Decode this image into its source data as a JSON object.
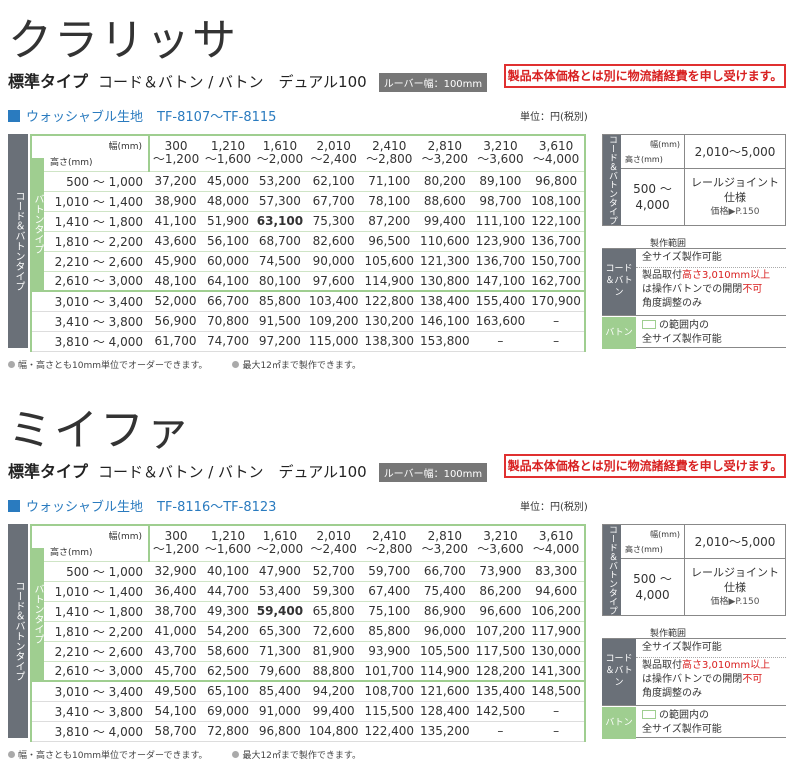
{
  "sections": [
    {
      "name": "クラリッサ",
      "type_std": "標準タイプ",
      "type_rest": "コード＆バトン / バトン　デュアル100",
      "louver": "ルーバー幅：100mm",
      "notice": "製品本体価格とは別に物流諸経費を申し受けます。",
      "fabric": "ウォッシャブル生地",
      "code": "TF-8107〜TF-8115",
      "unit": "単位：円(税別)",
      "side_label": "コード＆バトンタイプ",
      "baton_label": "バトンタイプ",
      "width_label": "幅(mm)",
      "height_label": "高さ(mm)",
      "widths": [
        [
          "300",
          "〜1,200"
        ],
        [
          "1,210",
          "〜1,600"
        ],
        [
          "1,610",
          "〜2,000"
        ],
        [
          "2,010",
          "〜2,400"
        ],
        [
          "2,410",
          "〜2,800"
        ],
        [
          "2,810",
          "〜3,200"
        ],
        [
          "3,210",
          "〜3,600"
        ],
        [
          "3,610",
          "〜4,000"
        ]
      ],
      "rows": [
        {
          "h": "500 〜 1,000",
          "v": [
            "37,200",
            "45,000",
            "53,200",
            "62,100",
            "71,100",
            "80,200",
            "89,100",
            "96,800"
          ]
        },
        {
          "h": "1,010 〜 1,400",
          "v": [
            "38,900",
            "48,000",
            "57,300",
            "67,700",
            "78,100",
            "88,600",
            "98,700",
            "108,100"
          ]
        },
        {
          "h": "1,410 〜 1,800",
          "v": [
            "41,100",
            "51,900",
            "63,100",
            "75,300",
            "87,200",
            "99,400",
            "111,100",
            "122,100"
          ]
        },
        {
          "h": "1,810 〜 2,200",
          "v": [
            "43,600",
            "56,100",
            "68,700",
            "82,600",
            "96,500",
            "110,600",
            "123,900",
            "136,700"
          ]
        },
        {
          "h": "2,210 〜 2,600",
          "v": [
            "45,900",
            "60,000",
            "74,500",
            "90,000",
            "105,600",
            "121,300",
            "136,700",
            "150,700"
          ]
        },
        {
          "h": "2,610 〜 3,000",
          "v": [
            "48,100",
            "64,100",
            "80,100",
            "97,600",
            "114,900",
            "130,800",
            "147,100",
            "162,700"
          ]
        },
        {
          "h": "3,010 〜 3,400",
          "v": [
            "52,000",
            "66,700",
            "85,800",
            "103,400",
            "122,800",
            "138,400",
            "155,400",
            "170,900"
          ]
        },
        {
          "h": "3,410 〜 3,800",
          "v": [
            "56,900",
            "70,800",
            "91,500",
            "109,200",
            "130,200",
            "146,100",
            "163,600",
            "–"
          ]
        },
        {
          "h": "3,810 〜 4,000",
          "v": [
            "61,700",
            "74,700",
            "97,200",
            "115,000",
            "138,300",
            "153,800",
            "–",
            "–"
          ]
        }
      ],
      "note1": "幅・高さとも10mm単位でオーダーできます。",
      "note2": "最大12㎡まで製作できます。",
      "rail_side": "コード＆バトンタイプ",
      "rail_width": "幅(mm)",
      "rail_height": "高さ(mm)",
      "rail_range": "2,010〜5,000",
      "rail_hrange1": "500 〜",
      "rail_hrange2": "4,000",
      "rail_joint1": "レールジョイント",
      "rail_joint2": "仕様",
      "rail_ref": "価格▶P.150",
      "prod_title": "製作範囲",
      "prod_l1": "コード＆バトン",
      "prod_l2": "バトン",
      "prod_t1": "全サイズ製作可能",
      "prod_t2a": "製品取付",
      "prod_t2b": "高さ3,010mm以上",
      "prod_t2c": "は操作バトンでの開閉",
      "prod_t2d": "不可",
      "prod_t2e": "角度調整のみ",
      "prod_t3a": "の範囲内の",
      "prod_t3b": "全サイズ製作可能"
    },
    {
      "name": "ミイファ",
      "type_std": "標準タイプ",
      "type_rest": "コード＆バトン / バトン　デュアル100",
      "louver": "ルーバー幅：100mm",
      "notice": "製品本体価格とは別に物流諸経費を申し受けます。",
      "fabric": "ウォッシャブル生地",
      "code": "TF-8116〜TF-8123",
      "unit": "単位：円(税別)",
      "side_label": "コード＆バトンタイプ",
      "baton_label": "バトンタイプ",
      "width_label": "幅(mm)",
      "height_label": "高さ(mm)",
      "widths": [
        [
          "300",
          "〜1,200"
        ],
        [
          "1,210",
          "〜1,600"
        ],
        [
          "1,610",
          "〜2,000"
        ],
        [
          "2,010",
          "〜2,400"
        ],
        [
          "2,410",
          "〜2,800"
        ],
        [
          "2,810",
          "〜3,200"
        ],
        [
          "3,210",
          "〜3,600"
        ],
        [
          "3,610",
          "〜4,000"
        ]
      ],
      "rows": [
        {
          "h": "500 〜 1,000",
          "v": [
            "32,900",
            "40,100",
            "47,900",
            "52,700",
            "59,700",
            "66,700",
            "73,900",
            "83,300"
          ]
        },
        {
          "h": "1,010 〜 1,400",
          "v": [
            "36,400",
            "44,700",
            "53,400",
            "59,300",
            "67,400",
            "75,400",
            "86,200",
            "94,600"
          ]
        },
        {
          "h": "1,410 〜 1,800",
          "v": [
            "38,700",
            "49,300",
            "59,400",
            "65,800",
            "75,100",
            "86,900",
            "96,600",
            "106,200"
          ]
        },
        {
          "h": "1,810 〜 2,200",
          "v": [
            "41,000",
            "54,200",
            "65,300",
            "72,600",
            "85,800",
            "96,000",
            "107,200",
            "117,900"
          ]
        },
        {
          "h": "2,210 〜 2,600",
          "v": [
            "43,700",
            "58,600",
            "71,300",
            "81,900",
            "93,900",
            "105,500",
            "117,500",
            "130,000"
          ]
        },
        {
          "h": "2,610 〜 3,000",
          "v": [
            "45,700",
            "62,500",
            "79,600",
            "88,800",
            "101,700",
            "114,900",
            "128,200",
            "141,300"
          ]
        },
        {
          "h": "3,010 〜 3,400",
          "v": [
            "49,500",
            "65,100",
            "85,400",
            "94,200",
            "108,700",
            "121,600",
            "135,400",
            "148,500"
          ]
        },
        {
          "h": "3,410 〜 3,800",
          "v": [
            "54,100",
            "69,000",
            "91,000",
            "99,400",
            "115,500",
            "128,400",
            "142,500",
            "–"
          ]
        },
        {
          "h": "3,810 〜 4,000",
          "v": [
            "58,700",
            "72,800",
            "96,800",
            "104,800",
            "122,400",
            "135,200",
            "–",
            "–"
          ]
        }
      ],
      "note1": "幅・高さとも10mm単位でオーダーできます。",
      "note2": "最大12㎡まで製作できます。",
      "rail_side": "コード＆バトンタイプ",
      "rail_width": "幅(mm)",
      "rail_height": "高さ(mm)",
      "rail_range": "2,010〜5,000",
      "rail_hrange1": "500 〜",
      "rail_hrange2": "4,000",
      "rail_joint1": "レールジョイント",
      "rail_joint2": "仕様",
      "rail_ref": "価格▶P.150",
      "prod_title": "製作範囲",
      "prod_l1": "コード＆バトン",
      "prod_l2": "バトン",
      "prod_t1": "全サイズ製作可能",
      "prod_t2a": "製品取付",
      "prod_t2b": "高さ3,010mm以上",
      "prod_t2c": "は操作バトンでの開閉",
      "prod_t2d": "不可",
      "prod_t2e": "角度調整のみ",
      "prod_t3a": "の範囲内の",
      "prod_t3b": "全サイズ製作可能"
    }
  ]
}
